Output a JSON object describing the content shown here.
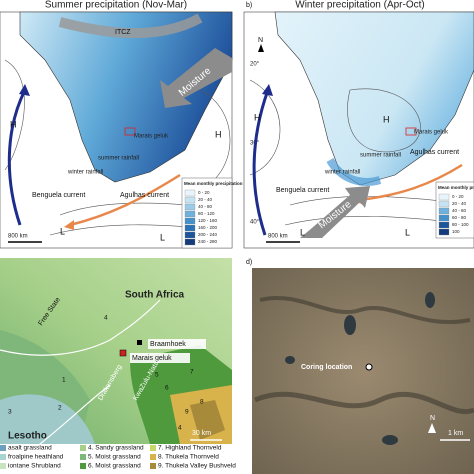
{
  "panel_a": {
    "title": "Summer precipitation (Nov-Mar)",
    "itcz": "ITCZ",
    "moisture": "Moisture",
    "site": "Marais geluk",
    "summer": "summer rainfall",
    "winter": "winter rainfall",
    "benguela": "Benguela current",
    "agulhas": "Agulhas current",
    "highs": [
      "H",
      "H"
    ],
    "lows": [
      "L",
      "L"
    ],
    "scale": "800 km",
    "legend_title": "Mean monthly precipitation (mm)",
    "legend": [
      "0 - 20",
      "20 - 40",
      "40 - 80",
      "80 - 120",
      "120 - 160",
      "160 - 200",
      "200 - 240",
      "240 - 280"
    ]
  },
  "panel_b": {
    "label": "b)",
    "title": "Winter precipitation (Apr-Oct)",
    "north": "N",
    "lat": [
      "20°",
      "30°",
      "40°"
    ],
    "moisture": "Moisture",
    "site": "Marais geluk",
    "summer": "summer rainfall",
    "winter": "winter rainfall",
    "benguela": "Benguela current",
    "agulhas": "Agulhas current",
    "highs": [
      "H",
      "H"
    ],
    "lows": [
      "L",
      "L"
    ],
    "scale": "800 km",
    "legend_title": "Mean monthly precipitation",
    "legend": [
      "0 - 20",
      "20 - 40",
      "40 - 60",
      "60 - 80",
      "80 - 100",
      "100"
    ]
  },
  "panel_c": {
    "country": "South Africa",
    "free_state": "Free State",
    "lesotho": "Lesotho",
    "braamhoek": "Braamhoek",
    "marais": "Marais geluk",
    "drakensberg": "Drakensberg",
    "kzn": "KwaZulu-Natal",
    "zones": [
      "4",
      "7",
      "1",
      "3",
      "2",
      "5",
      "6",
      "8",
      "9",
      "4"
    ],
    "scale": "30 km",
    "legend": [
      "asalt grassland",
      "froalpine heathland",
      "iontane Shrubland",
      "4. Sandy grassland",
      "5. Moist grassland",
      "6. Moist grassland",
      "7. Highland Thornveld",
      "8. Thukela Thornveld",
      "9. Thukela Valley Bushveld"
    ]
  },
  "panel_d": {
    "label": "d)",
    "site": "Coring location",
    "north": "N",
    "scale": "1 km"
  }
}
